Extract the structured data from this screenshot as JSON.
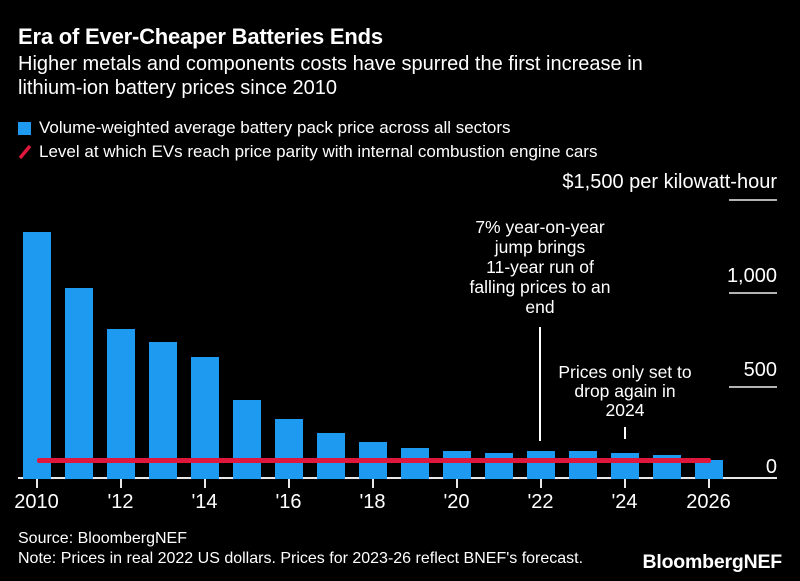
{
  "header": {
    "title": "Era of Ever-Cheaper Batteries Ends",
    "subtitle_line1": "Higher metals and components costs have spurred the first increase in",
    "subtitle_line2": "lithium-ion battery prices since 2010"
  },
  "legend": {
    "items": [
      {
        "swatch": "square",
        "color": "#1E9BF0",
        "label": "Volume-weighted average battery pack price across all sectors"
      },
      {
        "swatch": "slash",
        "color": "#E0173C",
        "label": "Level at which EVs reach price parity with internal combustion engine cars"
      }
    ]
  },
  "chart_data": {
    "type": "bar",
    "title": "Era of Ever-Cheaper Batteries Ends",
    "unit_label": "$1,500 per kilowatt-hour",
    "categories": [
      "2010",
      "2011",
      "2012",
      "2013",
      "2014",
      "2015",
      "2016",
      "2017",
      "2018",
      "2019",
      "2020",
      "2021",
      "2022",
      "2023",
      "2024",
      "2025",
      "2026"
    ],
    "values": [
      1320,
      1020,
      800,
      732,
      650,
      420,
      320,
      245,
      198,
      168,
      150,
      141,
      151,
      152,
      138,
      128,
      100
    ],
    "bar_color": "#1E9BF0",
    "ylim": [
      0,
      1500
    ],
    "grid": false,
    "legend_position": "top-left",
    "y_ticks": [
      {
        "value": 1500,
        "label": "$1,500 per kilowatt-hour"
      },
      {
        "value": 1000,
        "label": "1,000"
      },
      {
        "value": 500,
        "label": "500"
      },
      {
        "value": 0,
        "label": "0"
      }
    ],
    "x_ticks": [
      {
        "index": 0,
        "label": "2010"
      },
      {
        "index": 2,
        "label": "'12"
      },
      {
        "index": 4,
        "label": "'14"
      },
      {
        "index": 6,
        "label": "'16"
      },
      {
        "index": 8,
        "label": "'18"
      },
      {
        "index": 10,
        "label": "'20"
      },
      {
        "index": 12,
        "label": "'22"
      },
      {
        "index": 14,
        "label": "'24"
      },
      {
        "index": 16,
        "label": "2026"
      }
    ],
    "parity_line": {
      "value": 100,
      "color": "#E0173C",
      "label": "Level at which EVs reach price parity with internal combustion engine cars"
    },
    "annotations": [
      {
        "target": "2022",
        "lines": [
          "7% year-on-year",
          "jump brings",
          "11-year run of",
          "falling prices to an",
          "end"
        ]
      },
      {
        "target": "2024",
        "lines": [
          "Prices only set to",
          "drop again in",
          "2024"
        ]
      }
    ]
  },
  "footer": {
    "source": "Source: BloombergNEF",
    "note": "Note: Prices in real 2022 US dollars. Prices for 2023-26 reflect BNEF's forecast.",
    "logo": "BloombergNEF"
  }
}
